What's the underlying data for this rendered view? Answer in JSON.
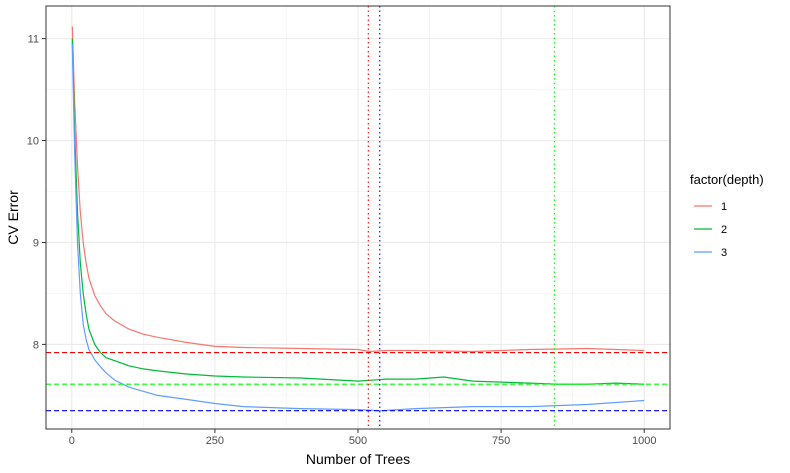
{
  "chart_data": {
    "type": "line",
    "xlabel": "Number of Trees",
    "ylabel": "CV Error",
    "xlim": [
      -45,
      1045
    ],
    "ylim": [
      7.17,
      11.32
    ],
    "x_ticks": [
      0,
      250,
      500,
      750,
      1000
    ],
    "y_ticks": [
      8,
      9,
      10,
      11
    ],
    "grid": true,
    "legend": {
      "title": "factor(depth)",
      "placement": "right",
      "entries": [
        "1",
        "2",
        "3"
      ]
    },
    "series": [
      {
        "name": "1",
        "color": "#F8766D",
        "x": [
          1,
          5,
          10,
          15,
          20,
          25,
          30,
          40,
          50,
          60,
          75,
          100,
          125,
          150,
          200,
          250,
          300,
          400,
          500,
          520,
          550,
          600,
          700,
          800,
          900,
          950,
          1000
        ],
        "y": [
          11.12,
          10.4,
          9.75,
          9.3,
          9.0,
          8.8,
          8.65,
          8.48,
          8.38,
          8.3,
          8.23,
          8.15,
          8.1,
          8.07,
          8.02,
          7.98,
          7.97,
          7.96,
          7.95,
          7.93,
          7.94,
          7.94,
          7.93,
          7.95,
          7.96,
          7.95,
          7.94
        ]
      },
      {
        "name": "2",
        "color": "#00BA38",
        "x": [
          1,
          5,
          10,
          15,
          20,
          25,
          30,
          40,
          50,
          60,
          75,
          100,
          125,
          150,
          200,
          250,
          300,
          400,
          500,
          550,
          600,
          650,
          700,
          750,
          800,
          850,
          900,
          950,
          1000
        ],
        "y": [
          11.0,
          10.1,
          9.3,
          8.8,
          8.5,
          8.3,
          8.15,
          8.0,
          7.92,
          7.87,
          7.84,
          7.79,
          7.76,
          7.74,
          7.71,
          7.69,
          7.68,
          7.67,
          7.64,
          7.66,
          7.66,
          7.68,
          7.64,
          7.63,
          7.62,
          7.61,
          7.61,
          7.62,
          7.61
        ]
      },
      {
        "name": "3",
        "color": "#619CFF",
        "x": [
          1,
          5,
          10,
          15,
          20,
          25,
          30,
          40,
          50,
          60,
          75,
          100,
          125,
          150,
          200,
          250,
          300,
          400,
          500,
          540,
          600,
          700,
          800,
          900,
          950,
          1000
        ],
        "y": [
          10.95,
          9.9,
          9.0,
          8.5,
          8.2,
          8.05,
          7.95,
          7.85,
          7.78,
          7.72,
          7.65,
          7.58,
          7.54,
          7.5,
          7.46,
          7.42,
          7.39,
          7.37,
          7.36,
          7.35,
          7.37,
          7.39,
          7.39,
          7.41,
          7.43,
          7.45
        ]
      }
    ],
    "hlines": [
      {
        "y": 7.92,
        "color": "#FF0000",
        "style": "dashed"
      },
      {
        "y": 7.61,
        "color": "#00FF00",
        "style": "dashed"
      },
      {
        "y": 7.35,
        "color": "#0000FF",
        "style": "dashed"
      }
    ],
    "vlines": [
      {
        "x": 518,
        "color": "#FF0000",
        "style": "dotted"
      },
      {
        "x": 538,
        "color": "#0000FF",
        "style": "dotted"
      },
      {
        "x": 843,
        "color": "#00FF00",
        "style": "dotted"
      }
    ]
  }
}
